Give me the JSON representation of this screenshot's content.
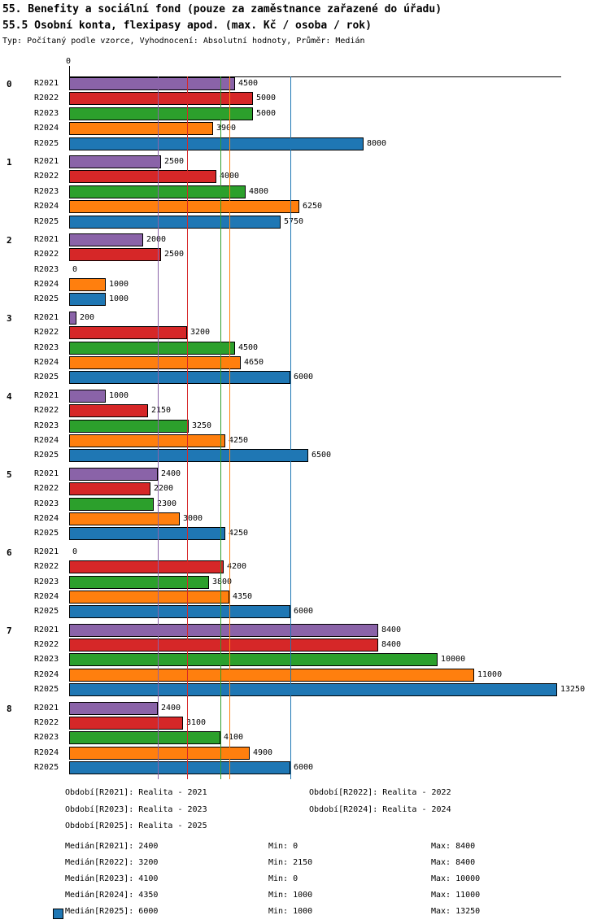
{
  "title": "55. Benefity a sociální fond (pouze za zaměstnance zařazené do úřadu)",
  "subtitle": "55.5 Osobní konta, flexipasy apod. (max. Kč / osoba / rok)",
  "meta": "Typ: Počítaný podle vzorce, Vyhodnocení: Absolutní hodnoty, Průměr: Medián",
  "chart_data": {
    "type": "bar",
    "orientation": "horizontal",
    "axis_top_tick": "0",
    "xlim": [
      0,
      13250
    ],
    "grid": false,
    "series_names": [
      "R2021",
      "R2022",
      "R2023",
      "R2024",
      "R2025"
    ],
    "series_colors": {
      "R2021": "#8a63a8",
      "R2022": "#d62728",
      "R2023": "#2ca02c",
      "R2024": "#ff7f0e",
      "R2025": "#1f77b4"
    },
    "groups": [
      {
        "label": "0",
        "values": [
          4500,
          5000,
          5000,
          3900,
          8000
        ]
      },
      {
        "label": "1",
        "values": [
          2500,
          4000,
          4800,
          6250,
          5750
        ]
      },
      {
        "label": "2",
        "values": [
          2000,
          2500,
          0,
          1000,
          1000
        ]
      },
      {
        "label": "3",
        "values": [
          200,
          3200,
          4500,
          4650,
          6000
        ]
      },
      {
        "label": "4",
        "values": [
          1000,
          2150,
          3250,
          4250,
          6500
        ]
      },
      {
        "label": "5",
        "values": [
          2400,
          2200,
          2300,
          3000,
          4250
        ]
      },
      {
        "label": "6",
        "values": [
          0,
          4200,
          3800,
          4350,
          6000
        ]
      },
      {
        "label": "7",
        "values": [
          8400,
          8400,
          10000,
          11000,
          13250
        ]
      },
      {
        "label": "8",
        "values": [
          2400,
          3100,
          4100,
          4900,
          6000
        ]
      }
    ],
    "median_lines": [
      {
        "series": "R2021",
        "value": 2400
      },
      {
        "series": "R2022",
        "value": 3200
      },
      {
        "series": "R2023",
        "value": 4100
      },
      {
        "series": "R2024",
        "value": 4350
      },
      {
        "series": "R2025",
        "value": 6000
      }
    ]
  },
  "legend": [
    {
      "label": "Období[R2021]: Realita - 2021"
    },
    {
      "label": "Období[R2022]: Realita - 2022"
    },
    {
      "label": "Období[R2023]: Realita - 2023"
    },
    {
      "label": "Období[R2024]: Realita - 2024"
    },
    {
      "label": "Období[R2025]: Realita - 2025"
    }
  ],
  "stats": [
    {
      "median": "Medián[R2021]: 2400",
      "min": "Min: 0",
      "max": "Max: 8400"
    },
    {
      "median": "Medián[R2022]: 3200",
      "min": "Min: 2150",
      "max": "Max: 8400"
    },
    {
      "median": "Medián[R2023]: 4100",
      "min": "Min: 0",
      "max": "Max: 10000"
    },
    {
      "median": "Medián[R2024]: 4350",
      "min": "Min: 1000",
      "max": "Max: 11000"
    },
    {
      "median": "Medián[R2025]: 6000",
      "min": "Min: 1000",
      "max": "Max: 13250"
    }
  ]
}
